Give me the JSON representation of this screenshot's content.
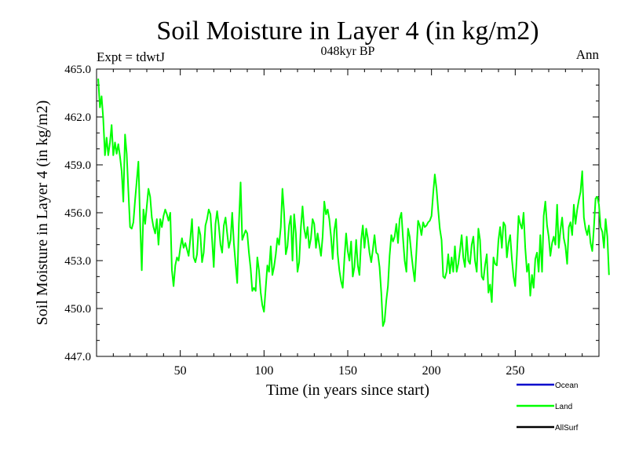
{
  "chart_data": {
    "type": "line",
    "title": "Soil Moisture in Layer 4 (in kg/m2)",
    "subtitle": "048kyr BP",
    "left_label": "Expt = tdwtJ",
    "right_label": "Ann",
    "xlabel": "Time (in years since start)",
    "ylabel": "Soil Moisture in Layer 4 (in kg/m2)",
    "xlim": [
      0,
      300
    ],
    "ylim": [
      447,
      465
    ],
    "x_ticks": [
      "50",
      "100",
      "150",
      "200",
      "250"
    ],
    "x_tick_values": [
      50,
      100,
      150,
      200,
      250
    ],
    "y_ticks": [
      "447.0",
      "450.0",
      "453.0",
      "456.0",
      "459.0",
      "462.0",
      "465.0"
    ],
    "y_tick_values": [
      447,
      450,
      453,
      456,
      459,
      462,
      465
    ],
    "legend": [
      {
        "name": "Ocean",
        "color": "#0000cc"
      },
      {
        "name": "Land",
        "color": "#00ff00"
      },
      {
        "name": "AllSurf",
        "color": "#000000"
      }
    ],
    "series": [
      {
        "name": "Land",
        "color": "#00ff00",
        "x_start": 1,
        "x_step": 1,
        "values": [
          464.4,
          462.6,
          463.3,
          461.9,
          459.6,
          460.7,
          459.6,
          460.4,
          461.5,
          459.6,
          460.4,
          459.7,
          460.3,
          459.5,
          458.6,
          456.7,
          460.9,
          459.7,
          457.4,
          455.1,
          455.0,
          455.4,
          456.8,
          458.0,
          459.2,
          455.4,
          452.4,
          456.2,
          455.3,
          456.4,
          457.5,
          457.0,
          455.7,
          455.1,
          454.7,
          455.6,
          454.0,
          455.6,
          455.1,
          455.8,
          456.2,
          455.9,
          455.5,
          456.0,
          452.4,
          451.4,
          452.7,
          453.2,
          453.0,
          453.8,
          454.4,
          453.8,
          454.1,
          453.7,
          453.3,
          454.4,
          455.6,
          453.2,
          452.9,
          453.4,
          455.1,
          454.6,
          452.9,
          453.5,
          455.2,
          455.6,
          456.2,
          455.9,
          454.3,
          452.6,
          455.3,
          456.1,
          455.2,
          454.0,
          453.5,
          455.2,
          455.7,
          454.7,
          453.8,
          454.3,
          456.0,
          454.1,
          452.8,
          451.6,
          455.3,
          457.9,
          454.3,
          454.6,
          454.9,
          454.7,
          453.5,
          452.5,
          451.1,
          451.3,
          451.1,
          453.2,
          452.4,
          451.0,
          450.2,
          449.8,
          451.3,
          452.7,
          452.3,
          453.9,
          452.1,
          452.6,
          453.4,
          454.4,
          454.0,
          455.1,
          457.5,
          456.0,
          453.4,
          453.9,
          455.2,
          455.8,
          453.0,
          455.9,
          454.7,
          452.3,
          452.9,
          455.1,
          456.4,
          455.0,
          454.4,
          455.1,
          453.8,
          454.4,
          455.6,
          455.3,
          453.8,
          454.7,
          454.0,
          453.3,
          454.5,
          456.7,
          455.9,
          456.2,
          455.6,
          454.5,
          453.1,
          454.9,
          455.6,
          453.4,
          452.4,
          451.7,
          451.3,
          453.1,
          454.7,
          453.6,
          453.0,
          454.2,
          452.0,
          452.6,
          454.3,
          452.7,
          452.1,
          454.3,
          455.2,
          453.8,
          455.0,
          454.4,
          453.5,
          452.9,
          453.7,
          454.6,
          453.5,
          453.4,
          452.6,
          451.0,
          448.9,
          449.2,
          450.5,
          451.4,
          453.3,
          454.6,
          454.2,
          454.5,
          455.3,
          454.1,
          455.6,
          456.0,
          454.4,
          453.0,
          452.3,
          455.0,
          454.5,
          453.4,
          452.5,
          451.7,
          453.6,
          455.5,
          455.2,
          454.6,
          455.4,
          455.1,
          455.2,
          455.4,
          455.5,
          455.8,
          457.2,
          458.4,
          457.5,
          456.2,
          455.0,
          454.3,
          452.0,
          451.9,
          452.3,
          453.4,
          452.2,
          453.2,
          452.3,
          453.9,
          452.3,
          452.8,
          453.6,
          454.6,
          453.2,
          452.6,
          454.5,
          453.0,
          452.8,
          454.0,
          454.5,
          453.0,
          452.3,
          455.0,
          454.3,
          452.0,
          451.8,
          452.7,
          453.4,
          451.0,
          451.5,
          450.4,
          453.2,
          452.8,
          452.7,
          454.3,
          455.1,
          453.8,
          455.4,
          455.2,
          453.2,
          454.1,
          454.6,
          453.1,
          452.0,
          451.4,
          453.4,
          455.8,
          455.3,
          455.0,
          456.0,
          453.8,
          452.3,
          452.8,
          450.8,
          452.1,
          451.3,
          453.1,
          453.5,
          452.3,
          454.6,
          452.3,
          455.8,
          456.7,
          455.2,
          454.5,
          453.3,
          454.1,
          454.5,
          454.0,
          456.5,
          453.8,
          454.9,
          455.7,
          454.4,
          453.9,
          452.8,
          455.1,
          455.4,
          454.6,
          456.5,
          455.3,
          456.2,
          456.8,
          457.3,
          458.6,
          455.7,
          455.0,
          454.6,
          455.2,
          454.1,
          453.6,
          455.1,
          456.9,
          457.0,
          456.5,
          455.1,
          454.8,
          453.8,
          455.6,
          454.5,
          452.1
        ]
      }
    ]
  }
}
